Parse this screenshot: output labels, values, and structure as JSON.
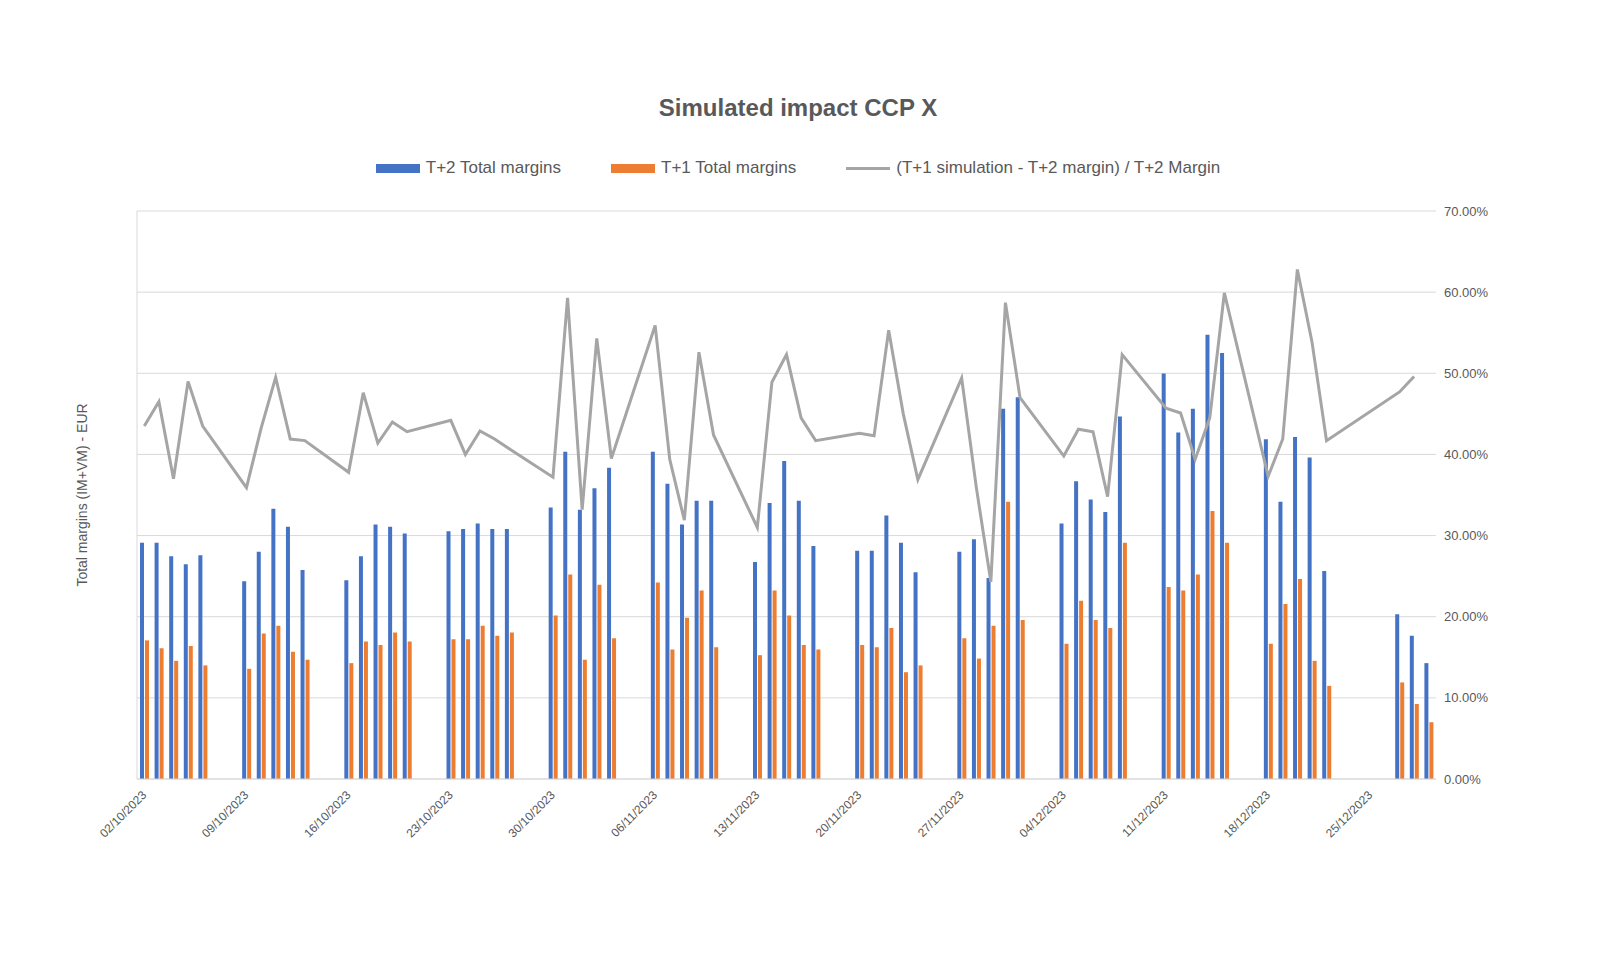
{
  "chart_data": {
    "type": "bar",
    "title": "Simulated impact CCP X",
    "ylabel": "Total margins (IM+VM) - EUR",
    "categories": [
      "02/10/2023",
      null,
      null,
      null,
      null,
      null,
      null,
      "09/10/2023",
      null,
      null,
      null,
      null,
      null,
      null,
      "16/10/2023",
      null,
      null,
      null,
      null,
      null,
      null,
      "23/10/2023",
      null,
      null,
      null,
      null,
      null,
      null,
      "30/10/2023",
      null,
      null,
      null,
      null,
      null,
      null,
      "06/11/2023",
      null,
      null,
      null,
      null,
      null,
      null,
      "13/11/2023",
      null,
      null,
      null,
      null,
      null,
      null,
      "20/11/2023",
      null,
      null,
      null,
      null,
      null,
      null,
      "27/11/2023",
      null,
      null,
      null,
      null,
      null,
      null,
      "04/12/2023",
      null,
      null,
      null,
      null,
      null,
      null,
      "11/12/2023",
      null,
      null,
      null,
      null,
      null,
      null,
      "18/12/2023",
      null,
      null,
      null,
      null,
      null,
      null,
      "25/12/2023",
      null,
      null,
      null,
      null
    ],
    "series": [
      {
        "name": "T+2 Total margins",
        "type": "bar",
        "color": "#4472c4",
        "values": [
          20.8,
          20.8,
          19.6,
          18.9,
          19.7,
          null,
          null,
          17.4,
          20.0,
          23.8,
          22.2,
          18.4,
          null,
          null,
          17.5,
          19.6,
          22.4,
          22.2,
          21.6,
          null,
          null,
          21.8,
          22.0,
          22.5,
          22.0,
          22.0,
          null,
          null,
          23.9,
          28.8,
          23.7,
          25.6,
          27.4,
          null,
          null,
          28.8,
          26.0,
          22.4,
          24.5,
          24.5,
          null,
          null,
          19.1,
          24.3,
          28.0,
          24.5,
          20.5,
          null,
          null,
          20.1,
          20.1,
          23.2,
          20.8,
          18.2,
          null,
          null,
          20.0,
          21.1,
          17.7,
          32.6,
          33.6,
          null,
          null,
          22.5,
          26.2,
          24.6,
          23.5,
          31.9,
          null,
          null,
          35.7,
          30.5,
          32.6,
          39.1,
          37.5,
          null,
          null,
          29.9,
          24.4,
          30.1,
          28.3,
          18.3,
          null,
          null,
          null,
          null,
          14.5,
          12.6,
          10.2
        ]
      },
      {
        "name": "T+1 Total margins",
        "type": "bar",
        "color": "#ed7d31",
        "values": [
          12.2,
          11.5,
          10.4,
          11.7,
          10.0,
          null,
          null,
          9.7,
          12.8,
          13.5,
          11.2,
          10.5,
          null,
          null,
          10.2,
          12.1,
          11.8,
          12.9,
          12.1,
          null,
          null,
          12.3,
          12.3,
          13.5,
          12.6,
          12.9,
          null,
          null,
          14.4,
          18.0,
          10.5,
          17.1,
          12.4,
          null,
          null,
          17.3,
          11.4,
          14.2,
          16.6,
          11.6,
          null,
          null,
          10.9,
          16.6,
          14.4,
          11.8,
          11.4,
          null,
          null,
          11.8,
          11.6,
          13.3,
          9.4,
          10.0,
          null,
          null,
          12.4,
          10.6,
          13.5,
          24.4,
          14.0,
          null,
          null,
          11.9,
          15.7,
          14.0,
          13.3,
          20.8,
          null,
          null,
          16.9,
          16.6,
          18.0,
          23.6,
          20.8,
          null,
          null,
          11.9,
          15.4,
          17.6,
          10.4,
          8.2,
          null,
          null,
          null,
          null,
          8.5,
          6.6,
          5.0
        ]
      },
      {
        "name": "(T+1 simulation - T+2 margin) / T+2 Margin",
        "type": "line",
        "axis": "y2",
        "color": "#a5a5a5",
        "values": [
          43.5,
          46.5,
          37.0,
          49.0,
          43.5,
          null,
          null,
          35.9,
          43.2,
          49.5,
          41.9,
          41.7,
          null,
          null,
          37.8,
          47.6,
          41.4,
          44.0,
          42.8,
          null,
          null,
          44.2,
          40.0,
          42.9,
          41.9,
          40.7,
          null,
          null,
          37.2,
          59.3,
          33.2,
          54.3,
          39.5,
          null,
          null,
          55.9,
          39.4,
          31.9,
          52.6,
          42.4,
          null,
          null,
          31.0,
          48.9,
          52.3,
          44.5,
          41.7,
          null,
          null,
          42.6,
          42.3,
          55.3,
          45.0,
          36.9,
          null,
          null,
          49.4,
          36.0,
          24.3,
          58.7,
          47.0,
          null,
          null,
          39.8,
          43.1,
          42.8,
          34.8,
          52.3,
          null,
          null,
          45.7,
          45.1,
          39.4,
          44.5,
          59.9,
          null,
          null,
          37.3,
          41.9,
          62.8,
          53.9,
          41.7,
          null,
          null,
          null,
          null,
          47.7,
          49.6,
          null
        ]
      }
    ],
    "ylim": [
      0,
      50
    ],
    "yticks": [],
    "y2lim": [
      0,
      70
    ],
    "y2ticks": [
      {
        "value": 0,
        "label": "0.00%"
      },
      {
        "value": 10,
        "label": "10.00%"
      },
      {
        "value": 20,
        "label": "20.00%"
      },
      {
        "value": 30,
        "label": "30.00%"
      },
      {
        "value": 40,
        "label": "40.00%"
      },
      {
        "value": 50,
        "label": "50.00%"
      },
      {
        "value": 60,
        "label": "60.00%"
      },
      {
        "value": 70,
        "label": "70.00%"
      }
    ],
    "grid": true
  }
}
